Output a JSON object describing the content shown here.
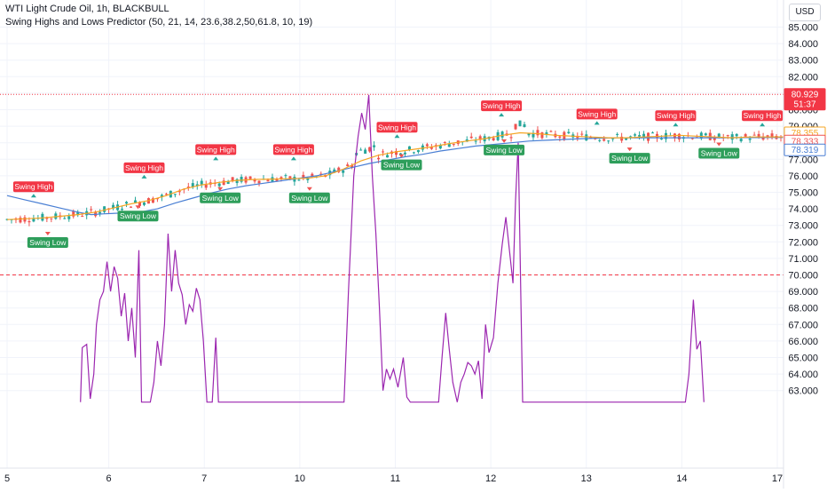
{
  "header": {
    "line1": "WTI Light Crude Oil, 1h, BLACKBULL",
    "line2": "Swing Highs and Lows Predictor (50, 21, 14, 23.6,38.2,50,61.8, 10, 19)",
    "currency": "USD"
  },
  "colors": {
    "up": "#26a69a",
    "down": "#ef5350",
    "fast_ma": "#f5a623",
    "slow_ma": "#4a7fd4",
    "oscillator": "#9c27b0",
    "swing_high_bg": "#f23645",
    "swing_low_bg": "#2e9e5b"
  },
  "price_badges": {
    "current": "80.929",
    "countdown": "51:37",
    "orange_line": "78.355",
    "red_line": "78.333",
    "blue_line": "78.319"
  },
  "chart_data": {
    "type": "line",
    "title": "WTI Light Crude Oil, 1h, BLACKBULL",
    "y_axis_ticks": [
      "85.000",
      "84.000",
      "83.000",
      "82.000",
      "81.000",
      "80.000",
      "79.000",
      "78.000",
      "77.000",
      "76.000",
      "75.000",
      "74.000",
      "73.000",
      "72.000",
      "71.000",
      "70.000",
      "69.000",
      "68.000",
      "67.000",
      "66.000",
      "65.000",
      "64.000",
      "63.000"
    ],
    "x_axis_ticks": [
      "5",
      "6",
      "7",
      "10",
      "11",
      "12",
      "13",
      "14",
      "17"
    ],
    "ylim": [
      62.5,
      85.6
    ],
    "reference_lines": [
      {
        "value": 80.929,
        "style": "dotted"
      },
      {
        "value": 70.0,
        "style": "dashed"
      }
    ],
    "labels": {
      "swing_high": "Swing High",
      "swing_low": "Swing Low"
    },
    "swing_highs": [
      {
        "x": 3,
        "y": 74.8
      },
      {
        "x": 15.5,
        "y": 75.95
      },
      {
        "x": 23.6,
        "y": 77.05
      },
      {
        "x": 32.4,
        "y": 77.05
      },
      {
        "x": 44.1,
        "y": 78.4
      },
      {
        "x": 55.9,
        "y": 79.7
      },
      {
        "x": 66.7,
        "y": 79.2
      },
      {
        "x": 75.6,
        "y": 79.1
      },
      {
        "x": 85.4,
        "y": 79.1
      }
    ],
    "swing_lows": [
      {
        "x": 4.6,
        "y": 72.5
      },
      {
        "x": 14.8,
        "y": 74.1
      },
      {
        "x": 24.1,
        "y": 75.2
      },
      {
        "x": 34.2,
        "y": 75.2
      },
      {
        "x": 44.6,
        "y": 77.2
      },
      {
        "x": 56.2,
        "y": 78.1
      },
      {
        "x": 70.4,
        "y": 77.6
      },
      {
        "x": 80.5,
        "y": 77.9
      }
    ],
    "series": [
      {
        "role": "slow_ma",
        "values": [
          [
            0,
            74.8
          ],
          [
            2,
            74.55
          ],
          [
            4,
            74.3
          ],
          [
            6,
            74.05
          ],
          [
            8,
            73.8
          ],
          [
            9.5,
            73.65
          ],
          [
            11,
            73.7
          ],
          [
            13,
            73.75
          ],
          [
            15,
            73.8
          ],
          [
            17,
            74.0
          ],
          [
            19,
            74.35
          ],
          [
            21,
            74.65
          ],
          [
            23,
            74.95
          ],
          [
            25,
            75.2
          ],
          [
            27,
            75.4
          ],
          [
            29,
            75.55
          ],
          [
            31,
            75.7
          ],
          [
            33,
            75.85
          ],
          [
            35,
            76.0
          ],
          [
            37,
            76.25
          ],
          [
            39,
            76.5
          ],
          [
            41,
            76.75
          ],
          [
            43,
            76.95
          ],
          [
            45,
            77.15
          ],
          [
            47,
            77.3
          ],
          [
            49,
            77.5
          ],
          [
            51,
            77.65
          ],
          [
            53,
            77.8
          ],
          [
            55,
            77.9
          ],
          [
            57,
            78.0
          ],
          [
            59,
            78.1
          ],
          [
            61,
            78.15
          ],
          [
            63,
            78.2
          ],
          [
            65,
            78.25
          ],
          [
            67,
            78.28
          ],
          [
            69,
            78.3
          ],
          [
            71,
            78.3
          ],
          [
            73,
            78.3
          ],
          [
            75,
            78.3
          ],
          [
            77,
            78.3
          ],
          [
            79,
            78.3
          ],
          [
            81,
            78.3
          ],
          [
            83,
            78.31
          ],
          [
            85,
            78.31
          ],
          [
            87,
            78.32
          ],
          [
            88,
            78.319
          ]
        ]
      },
      {
        "role": "fast_ma",
        "values": [
          [
            0,
            73.35
          ],
          [
            2,
            73.4
          ],
          [
            4,
            73.45
          ],
          [
            6,
            73.55
          ],
          [
            8,
            73.65
          ],
          [
            10,
            73.8
          ],
          [
            12,
            74.05
          ],
          [
            14,
            74.3
          ],
          [
            16,
            74.5
          ],
          [
            18,
            74.8
          ],
          [
            20,
            75.2
          ],
          [
            22,
            75.45
          ],
          [
            24,
            75.6
          ],
          [
            26,
            75.72
          ],
          [
            28,
            75.78
          ],
          [
            30,
            75.8
          ],
          [
            32,
            75.82
          ],
          [
            34,
            75.85
          ],
          [
            36,
            76.0
          ],
          [
            38,
            76.4
          ],
          [
            40,
            76.9
          ],
          [
            42,
            77.25
          ],
          [
            44,
            77.45
          ],
          [
            46,
            77.6
          ],
          [
            48,
            77.75
          ],
          [
            50,
            77.95
          ],
          [
            52,
            78.1
          ],
          [
            54,
            78.25
          ],
          [
            56,
            78.45
          ],
          [
            58,
            78.6
          ],
          [
            60,
            78.55
          ],
          [
            62,
            78.45
          ],
          [
            64,
            78.4
          ],
          [
            66,
            78.35
          ],
          [
            68,
            78.3
          ],
          [
            70,
            78.3
          ],
          [
            72,
            78.35
          ],
          [
            74,
            78.4
          ],
          [
            76,
            78.45
          ],
          [
            78,
            78.4
          ],
          [
            80,
            78.35
          ],
          [
            82,
            78.3
          ],
          [
            84,
            78.35
          ],
          [
            86,
            78.35
          ],
          [
            88,
            78.355
          ]
        ]
      },
      {
        "role": "oscillator",
        "values": [
          [
            8.3,
            62.3
          ],
          [
            8.5,
            65.6
          ],
          [
            9.0,
            65.8
          ],
          [
            9.4,
            62.5
          ],
          [
            9.8,
            64.0
          ],
          [
            10.1,
            67.0
          ],
          [
            10.5,
            68.5
          ],
          [
            10.9,
            69.0
          ],
          [
            11.3,
            70.8
          ],
          [
            11.7,
            69.0
          ],
          [
            12.1,
            70.5
          ],
          [
            12.5,
            69.8
          ],
          [
            12.9,
            67.5
          ],
          [
            13.3,
            68.9
          ],
          [
            13.7,
            66.0
          ],
          [
            14.1,
            68.0
          ],
          [
            14.5,
            65.0
          ],
          [
            14.9,
            71.5
          ],
          [
            15.2,
            62.3
          ],
          [
            16.2,
            62.3
          ],
          [
            16.6,
            63.5
          ],
          [
            17.0,
            66.0
          ],
          [
            17.4,
            64.5
          ],
          [
            17.8,
            67.0
          ],
          [
            18.2,
            72.5
          ],
          [
            18.6,
            69.0
          ],
          [
            19.0,
            71.5
          ],
          [
            19.4,
            69.5
          ],
          [
            19.8,
            68.8
          ],
          [
            20.2,
            67.0
          ],
          [
            20.6,
            68.2
          ],
          [
            21.0,
            67.8
          ],
          [
            21.4,
            69.2
          ],
          [
            21.8,
            68.5
          ],
          [
            22.2,
            66.0
          ],
          [
            22.6,
            62.3
          ],
          [
            23.2,
            62.3
          ],
          [
            23.6,
            66.2
          ],
          [
            23.9,
            62.3
          ],
          [
            38.1,
            62.3
          ],
          [
            38.6,
            69.0
          ],
          [
            39.2,
            76.0
          ],
          [
            39.7,
            78.4
          ],
          [
            40.1,
            79.8
          ],
          [
            40.5,
            78.8
          ],
          [
            40.9,
            80.9
          ],
          [
            41.3,
            76.0
          ],
          [
            41.7,
            72.5
          ],
          [
            42.1,
            68.0
          ],
          [
            42.5,
            63.0
          ],
          [
            42.9,
            64.3
          ],
          [
            43.3,
            63.7
          ],
          [
            43.7,
            64.3
          ],
          [
            44.2,
            63.2
          ],
          [
            44.8,
            65.0
          ],
          [
            45.2,
            62.6
          ],
          [
            45.6,
            62.3
          ],
          [
            48.8,
            62.3
          ],
          [
            49.2,
            65.1
          ],
          [
            49.6,
            67.7
          ],
          [
            50.0,
            65.5
          ],
          [
            50.4,
            63.5
          ],
          [
            50.9,
            62.3
          ],
          [
            51.3,
            63.5
          ],
          [
            51.7,
            64.0
          ],
          [
            52.1,
            64.7
          ],
          [
            52.5,
            64.5
          ],
          [
            52.9,
            64.0
          ],
          [
            53.3,
            64.8
          ],
          [
            53.7,
            62.5
          ],
          [
            54.1,
            67.0
          ],
          [
            54.5,
            65.3
          ],
          [
            55.0,
            66.2
          ],
          [
            55.5,
            69.5
          ],
          [
            56.0,
            71.9
          ],
          [
            56.4,
            73.5
          ],
          [
            56.8,
            71.5
          ],
          [
            57.2,
            69.5
          ],
          [
            57.5,
            74.5
          ],
          [
            57.8,
            78.0
          ],
          [
            58.3,
            62.3
          ],
          [
            76.7,
            62.3
          ],
          [
            77.1,
            64.0
          ],
          [
            77.6,
            68.5
          ],
          [
            78.0,
            65.5
          ],
          [
            78.4,
            66.0
          ],
          [
            78.8,
            62.3
          ]
        ]
      }
    ]
  }
}
